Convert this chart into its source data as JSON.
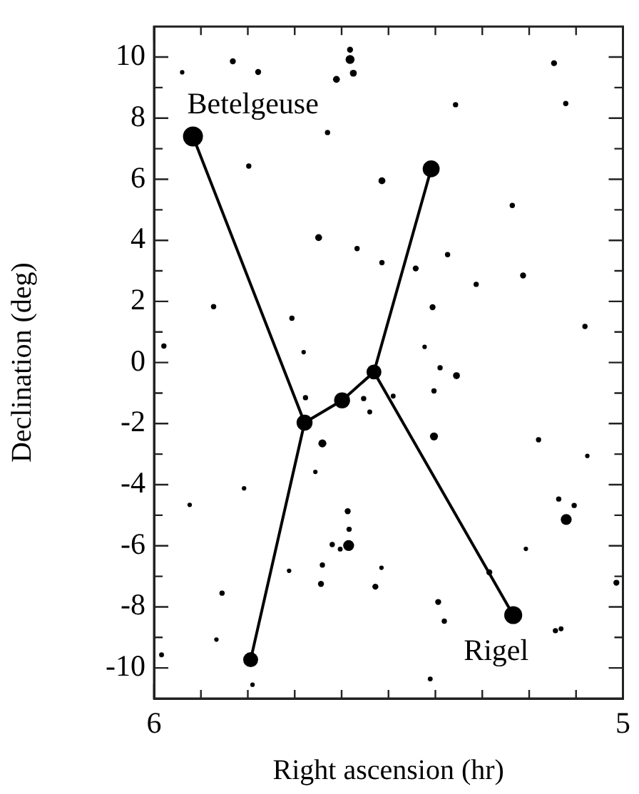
{
  "chart_data": {
    "type": "bubble",
    "xlabel": "Right ascension (hr)",
    "ylabel": "Declination (deg)",
    "xlim": [
      6,
      5
    ],
    "ylim": [
      -11,
      11
    ],
    "xticks": [
      6,
      {
        "value": 5.9,
        "label": null
      },
      {
        "value": 5.8,
        "label": null
      },
      {
        "value": 5.7,
        "label": null
      },
      {
        "value": 5.6,
        "label": null
      },
      {
        "value": 5.5,
        "label": null
      },
      {
        "value": 5.4,
        "label": null
      },
      {
        "value": 5.3,
        "label": null
      },
      {
        "value": 5.2,
        "label": null
      },
      {
        "value": 5.1,
        "label": null
      },
      5
    ],
    "yticks": [
      -10,
      {
        "value": -9,
        "label": null
      },
      -8,
      {
        "value": -7,
        "label": null
      },
      -6,
      {
        "value": -5,
        "label": null
      },
      -4,
      {
        "value": -3,
        "label": null
      },
      -2,
      {
        "value": -1,
        "label": null
      },
      0,
      {
        "value": 1,
        "label": null
      },
      2,
      {
        "value": 3,
        "label": null
      },
      4,
      {
        "value": 5,
        "label": null
      },
      6,
      {
        "value": 7,
        "label": null
      },
      8,
      {
        "value": 9,
        "label": null
      },
      10
    ],
    "grid": false,
    "legend": false,
    "annotations": [
      {
        "text": "Betelgeuse",
        "x": 5.917,
        "y": 7.4
      },
      {
        "text": "Rigel",
        "x": 5.234,
        "y": -8.27
      }
    ],
    "series": [
      {
        "color": "#000000",
        "x": [
          5.917,
          5.409,
          5.679,
          5.599,
          5.531,
          5.794,
          5.234,
          5.285,
          5.832,
          5.94,
          5.778,
          5.582,
          5.582,
          5.575,
          5.611,
          5.147,
          5.122,
          5.357,
          5.63,
          5.798,
          5.514,
          5.236,
          5.649,
          5.567,
          5.514,
          5.442,
          5.374,
          5.213,
          5.313,
          5.873,
          5.706,
          5.406,
          5.081,
          5.979,
          5.681,
          5.423,
          5.39,
          5.355,
          5.403,
          5.677,
          5.553,
          5.54,
          5.49,
          5.641,
          5.403,
          5.18,
          5.076,
          5.656,
          5.808,
          5.924,
          5.587,
          5.137,
          5.104,
          5.121,
          5.584,
          5.62,
          5.603,
          5.585,
          5.641,
          5.712,
          5.515,
          5.644,
          5.528,
          5.855,
          5.207,
          5.014,
          5.394,
          5.381,
          5.144,
          5.132,
          5.867,
          5.984,
          5.411,
          5.79
        ],
        "values": [
          7.4,
          6.34,
          -1.97,
          -1.24,
          -0.31,
          -9.73,
          -8.27,
          -6.87,
          9.86,
          9.5,
          9.51,
          10.24,
          9.92,
          9.47,
          9.27,
          9.8,
          8.48,
          8.44,
          7.53,
          6.43,
          5.95,
          5.14,
          4.09,
          3.73,
          3.27,
          3.08,
          3.53,
          2.85,
          2.56,
          1.83,
          1.45,
          1.81,
          1.18,
          0.54,
          0.34,
          0.51,
          -0.17,
          -0.43,
          -0.93,
          -1.15,
          -1.18,
          -1.62,
          -1.1,
          -2.65,
          -2.42,
          -2.53,
          -3.06,
          -3.58,
          -4.12,
          -4.66,
          -4.87,
          -4.47,
          -4.68,
          -5.14,
          -5.46,
          -5.96,
          -6.11,
          -5.99,
          -6.63,
          -6.82,
          -6.72,
          -7.25,
          -7.34,
          -7.55,
          -6.1,
          -7.21,
          -7.84,
          -8.47,
          -8.78,
          -8.72,
          -9.07,
          -9.57,
          -10.36,
          -10.55
        ],
        "sizes": [
          1,
          0.72,
          0.64,
          0.64,
          0.56,
          0.56,
          0.81,
          0.09,
          0.09,
          0.05,
          0.09,
          0.09,
          0.2,
          0.12,
          0.12,
          0.09,
          0.07,
          0.07,
          0.07,
          0.07,
          0.12,
          0.07,
          0.12,
          0.07,
          0.07,
          0.09,
          0.07,
          0.09,
          0.07,
          0.07,
          0.07,
          0.09,
          0.07,
          0.07,
          0.05,
          0.05,
          0.07,
          0.12,
          0.07,
          0.07,
          0.07,
          0.06,
          0.06,
          0.16,
          0.16,
          0.07,
          0.05,
          0.05,
          0.05,
          0.05,
          0.09,
          0.07,
          0.07,
          0.3,
          0.07,
          0.07,
          0.06,
          0.3,
          0.07,
          0.05,
          0.05,
          0.09,
          0.09,
          0.07,
          0.05,
          0.09,
          0.09,
          0.07,
          0.07,
          0.06,
          0.05,
          0.06,
          0.06,
          0.05
        ]
      },
      {
        "type": "line",
        "color": "#000000",
        "x": [
          5.917,
          5.679,
          5.794
        ],
        "values": [
          7.4,
          -1.97,
          -9.73
        ]
      },
      {
        "type": "line",
        "color": "#000000",
        "x": [
          5.679,
          5.599,
          5.531,
          5.409
        ],
        "values": [
          -1.97,
          -1.24,
          -0.31,
          6.34
        ]
      },
      {
        "type": "line",
        "color": "#000000",
        "x": [
          5.531,
          5.234
        ],
        "values": [
          -0.31,
          -8.27
        ]
      }
    ]
  }
}
